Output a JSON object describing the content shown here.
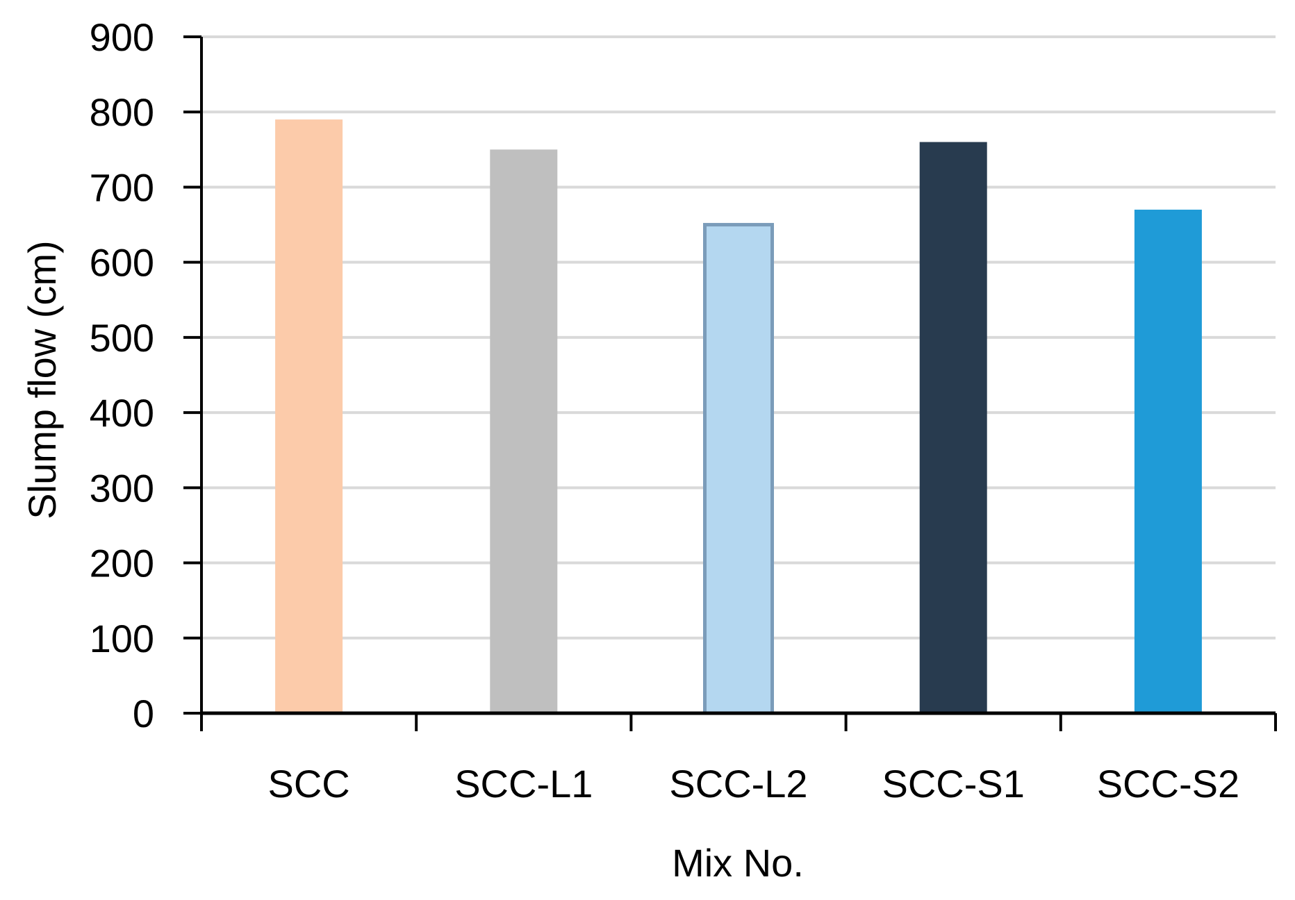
{
  "chart_data": {
    "type": "bar",
    "categories": [
      "SCC",
      "SCC-L1",
      "SCC-L2",
      "SCC-S1",
      "SCC-S2"
    ],
    "values": [
      790,
      750,
      650,
      760,
      670
    ],
    "bar_colors": [
      "#FCCBAA",
      "#BFBFBF",
      "#B4D7F0",
      "#283B4F",
      "#1F9BD7"
    ],
    "bar_outline_colors": [
      null,
      null,
      "#7B9CBA",
      null,
      null
    ],
    "xlabel": "Mix No.",
    "ylabel": "Slump flow (cm)",
    "ylim": [
      0,
      900
    ],
    "yticks": [
      0,
      100,
      200,
      300,
      400,
      500,
      600,
      700,
      800,
      900
    ],
    "grid": true,
    "grid_color": "#D9D9D9",
    "axis_color": "#000000"
  }
}
